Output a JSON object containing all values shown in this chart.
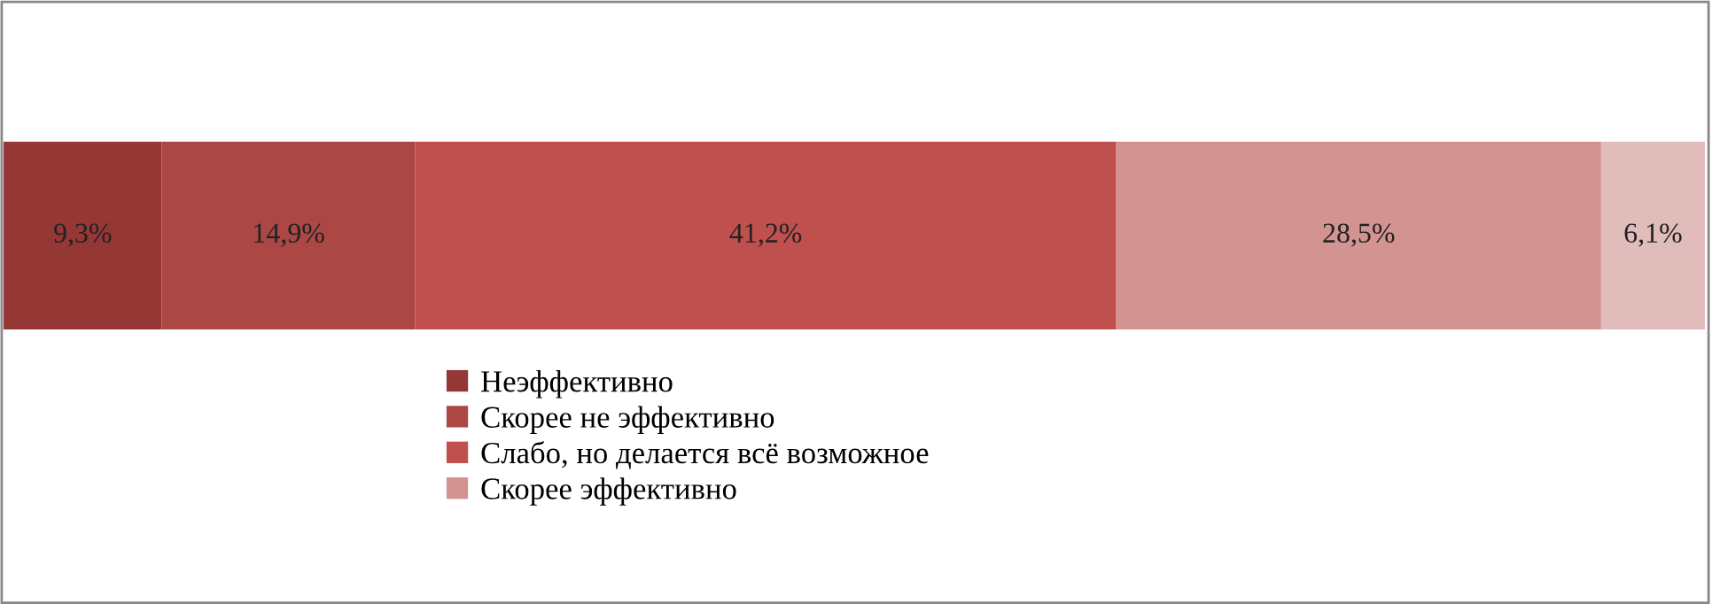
{
  "chart_data": {
    "type": "bar",
    "stacked": true,
    "orientation": "horizontal",
    "categories": [
      null
    ],
    "series": [
      {
        "name": "Неэффективно",
        "color": "#953735",
        "values": [
          9.3
        ],
        "value_labels": [
          "9,3%"
        ]
      },
      {
        "name": "Скорее не эффективно",
        "color": "#ab4744",
        "values": [
          14.9
        ],
        "value_labels": [
          "14,9%"
        ]
      },
      {
        "name": "Слабо, но делается всё возможное",
        "color": "#c0504d",
        "values": [
          41.2
        ],
        "value_labels": [
          "41,2%"
        ]
      },
      {
        "name": "Скорее эффективно",
        "color": "#d39391",
        "values": [
          28.5
        ],
        "value_labels": [
          "28,5%"
        ]
      },
      {
        "color": "#e0bcbb",
        "values": [
          6.1
        ],
        "value_labels": [
          "6,1%"
        ]
      }
    ],
    "xlim": [
      0,
      100
    ],
    "tick_labels": false,
    "legend": "bottom"
  }
}
